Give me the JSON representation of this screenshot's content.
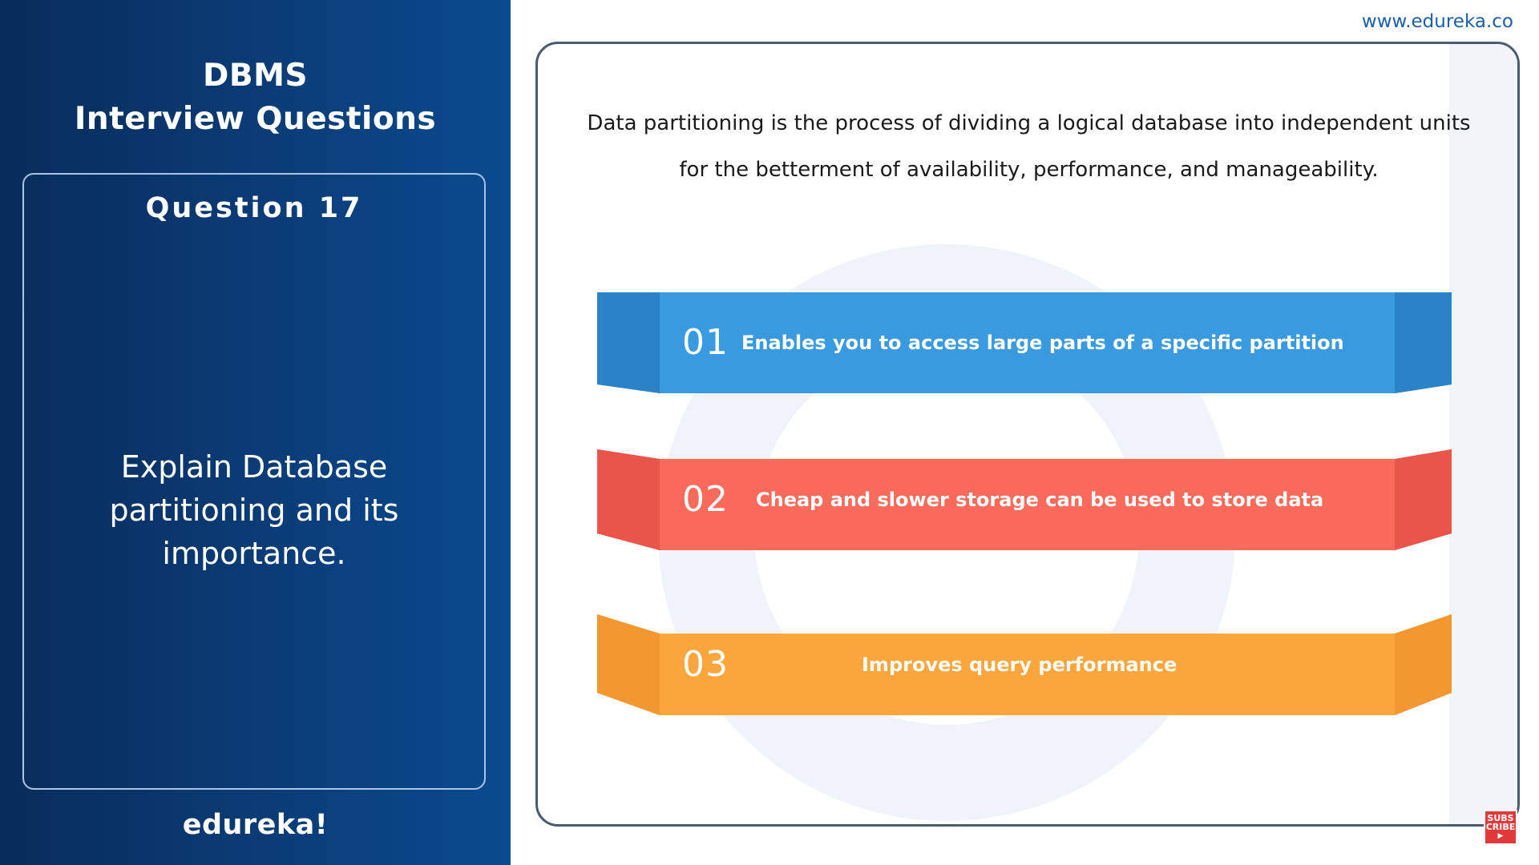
{
  "site_url": "www.edureka.co",
  "left_panel": {
    "title_line1": "DBMS",
    "title_line2": "Interview Questions",
    "question_label": "Question 17",
    "question_line1": "Explain Database",
    "question_line2": "partitioning and its",
    "question_line3": "importance.",
    "brand": "edureka!"
  },
  "content": {
    "intro_line1": "Data partitioning is the process of dividing a logical database into independent units",
    "intro_line2": "for the betterment of availability, performance, and manageability.",
    "items": [
      {
        "number": "01",
        "text": "Enables you to access large parts of a specific partition",
        "color": "#3a9ae0",
        "edge_color": "#2a82c7"
      },
      {
        "number": "02",
        "text": "Cheap and slower storage can be used to store data",
        "color": "#f86a5a",
        "edge_color": "#e9554a"
      },
      {
        "number": "03",
        "text": "Improves query performance",
        "color": "#fba63c",
        "edge_color": "#f39830"
      }
    ]
  },
  "subscribe_badge": {
    "line1": "SUBS",
    "line2": "CRIBE"
  }
}
